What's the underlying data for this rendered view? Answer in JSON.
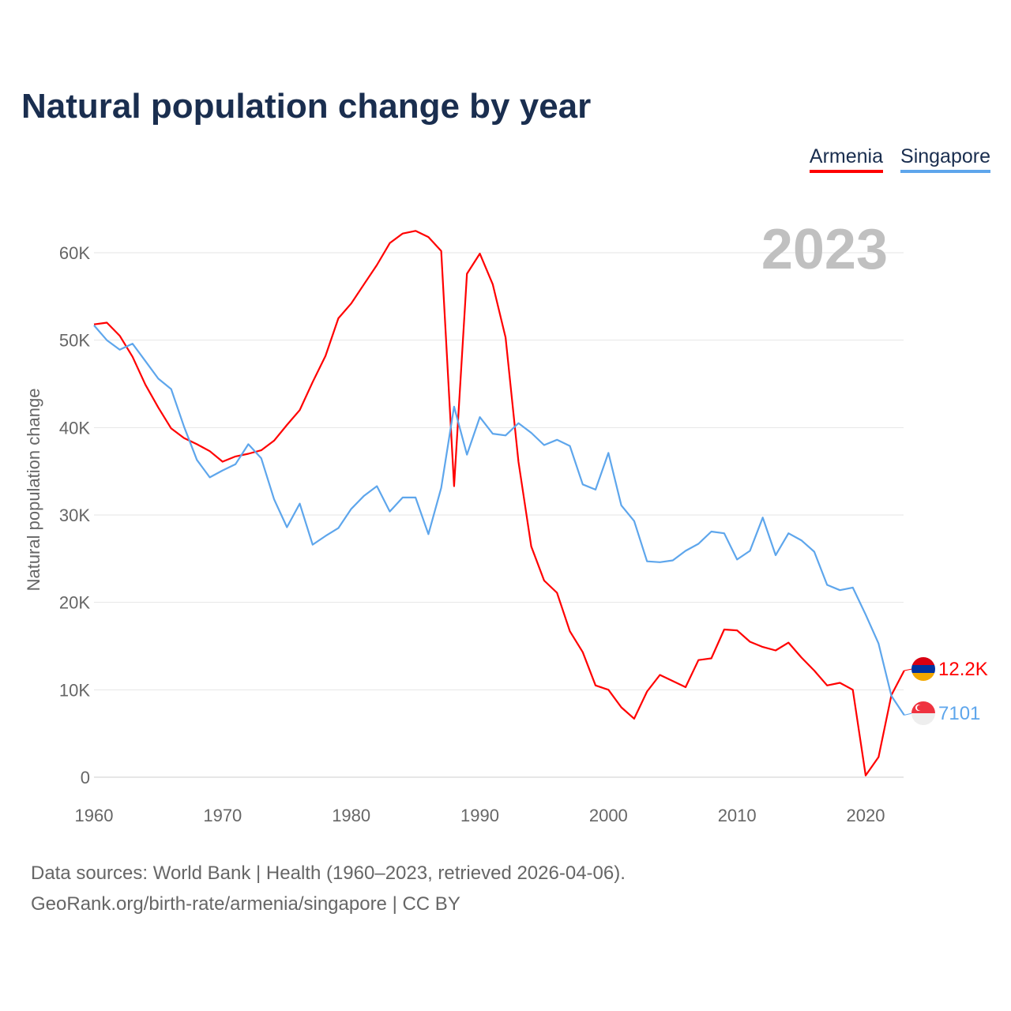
{
  "title": "Natural population change by year",
  "year_label": "2023",
  "footer": {
    "line1": "Data sources: World Bank | Health (1960–2023, retrieved 2026-04-06).",
    "line2": "GeoRank.org/birth-rate/armenia/singapore | CC BY"
  },
  "chart_data": {
    "type": "line",
    "title": "Natural population change by year",
    "xlabel": "",
    "ylabel": "Natural population change",
    "xlim": [
      1960,
      2023
    ],
    "ylim": [
      0,
      62500
    ],
    "grid": true,
    "legend_placement": "top-right",
    "x_ticks": [
      "1960",
      "1970",
      "1980",
      "1990",
      "2000",
      "2010",
      "2020"
    ],
    "y_ticks": [
      {
        "v": 0,
        "label": "0"
      },
      {
        "v": 10000,
        "label": "10K"
      },
      {
        "v": 20000,
        "label": "20K"
      },
      {
        "v": 30000,
        "label": "30K"
      },
      {
        "v": 40000,
        "label": "40K"
      },
      {
        "v": 50000,
        "label": "50K"
      },
      {
        "v": 60000,
        "label": "60K"
      }
    ],
    "x_start": 1960,
    "series": [
      {
        "name": "Armenia",
        "color": "#ff0000",
        "end_label": "12.2K",
        "flag": "armenia-flag",
        "values": [
          51800,
          52000,
          50500,
          48100,
          44900,
          42300,
          39900,
          38800,
          38100,
          37300,
          36100,
          36700,
          37000,
          37400,
          38500,
          40300,
          42000,
          45200,
          48200,
          52500,
          54200,
          56400,
          58600,
          61100,
          62200,
          62500,
          61800,
          60200,
          33300,
          57600,
          59900,
          56400,
          50300,
          36100,
          26400,
          22500,
          21100,
          16700,
          14300,
          10500,
          10000,
          8000,
          6700,
          9800,
          11700,
          11000,
          10300,
          13400,
          13600,
          16900,
          16800,
          15500,
          14900,
          14500,
          15400,
          13700,
          12200,
          10500,
          10800,
          10000,
          200,
          2300,
          9400,
          12200
        ]
      },
      {
        "name": "Singapore",
        "color": "#5ea6ec",
        "end_label": "7101",
        "flag": "singapore-flag",
        "values": [
          51700,
          50000,
          48900,
          49600,
          47600,
          45600,
          44400,
          40100,
          36300,
          34300,
          35100,
          35800,
          38100,
          36500,
          31800,
          28600,
          31300,
          26600,
          27600,
          28500,
          30700,
          32200,
          33300,
          30400,
          32000,
          32000,
          27800,
          33100,
          42400,
          36900,
          41200,
          39300,
          39100,
          40500,
          39400,
          38000,
          38600,
          37900,
          33500,
          32900,
          37100,
          31100,
          29300,
          24700,
          24600,
          24800,
          25900,
          26700,
          28100,
          27900,
          24900,
          25900,
          29700,
          25400,
          27900,
          27100,
          25800,
          22000,
          21400,
          21700,
          18600,
          15300,
          9300,
          7101
        ]
      }
    ]
  }
}
